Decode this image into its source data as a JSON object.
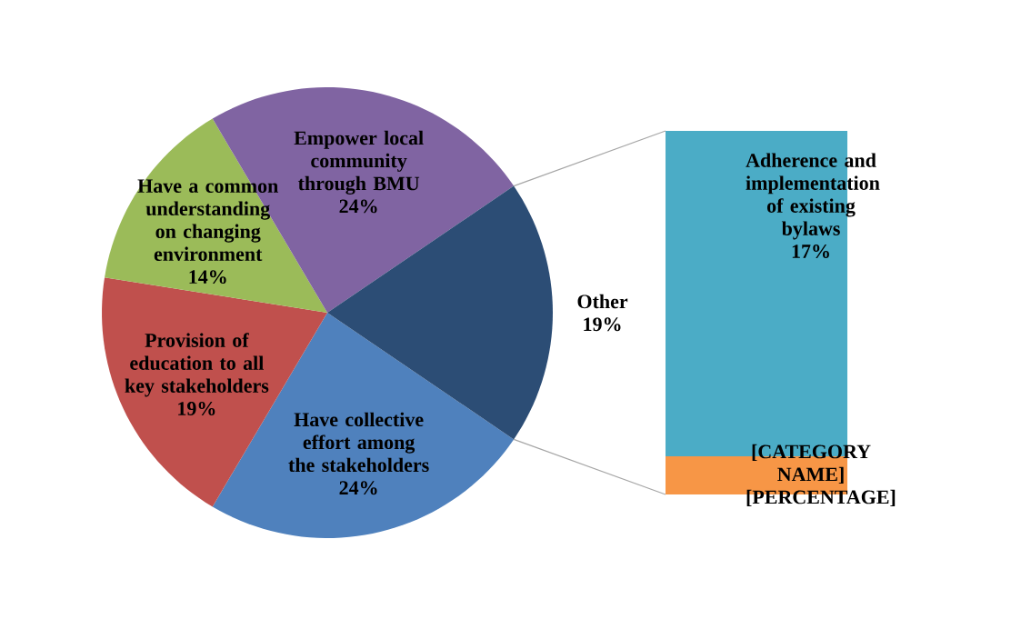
{
  "chart_data": [
    {
      "type": "pie",
      "categories": [
        "Have collective effort among the stakeholders",
        "Provision of education to all key stakeholders",
        "Have a common understanding on changing environment",
        "Empower local community through BMU",
        "Other"
      ],
      "values": [
        24,
        19,
        14,
        24,
        19
      ],
      "colors": [
        "#4f81bd",
        "#c0504d",
        "#9bbb59",
        "#8064a2",
        "#2c4d75"
      ],
      "value_labels": [
        "24%",
        "19%",
        "14%",
        "24%",
        "19%"
      ]
    },
    {
      "type": "bar",
      "stacked": true,
      "categories": [
        null
      ],
      "tick_labels": false,
      "series": [
        {
          "name": "[CATEGORY NAME]",
          "color": "#f79646",
          "values": [
            2
          ],
          "value_labels": [
            "[PERCENTAGE]"
          ]
        },
        {
          "name": "Adherence and implementation of existing bylaws",
          "color": "#4bacc6",
          "values": [
            17
          ],
          "value_labels": [
            "17%"
          ]
        }
      ]
    }
  ]
}
